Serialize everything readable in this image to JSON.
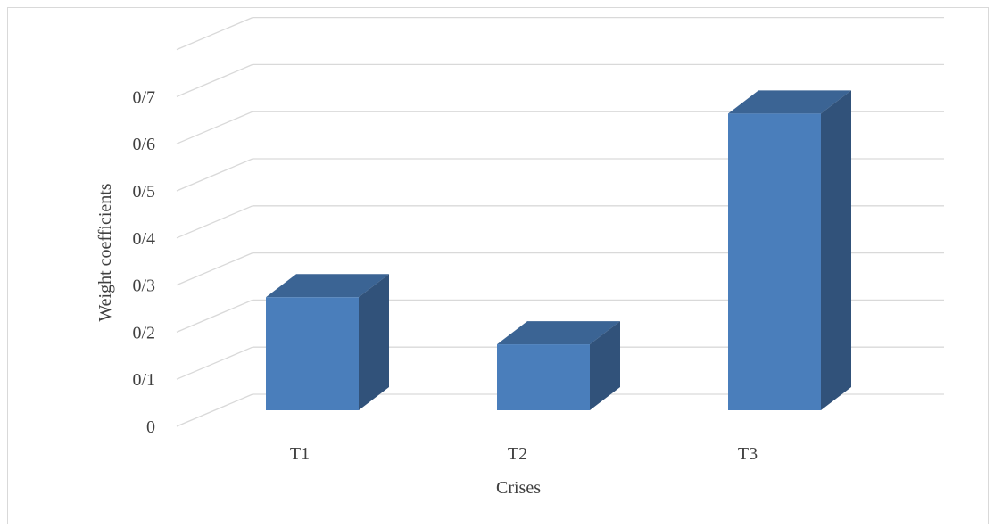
{
  "chart_data": {
    "type": "bar",
    "style": "3d-column",
    "categories": [
      "T1",
      "T2",
      "T3"
    ],
    "values": [
      0.24,
      0.14,
      0.63
    ],
    "xlabel": "Crises",
    "ylabel": "Weight  coefficients",
    "ylim": [
      0,
      0.8
    ],
    "yticks": [
      "0",
      "0/1",
      "0/2",
      "0/3",
      "0/4",
      "0/5",
      "0/6",
      "0/7"
    ],
    "grid": true,
    "legend": "none",
    "colors": {
      "bar_front": "#4a7ebb",
      "bar_top": "#3b6494",
      "bar_side": "#31527a",
      "grid": "#d9d9d9",
      "text": "#404040"
    }
  }
}
